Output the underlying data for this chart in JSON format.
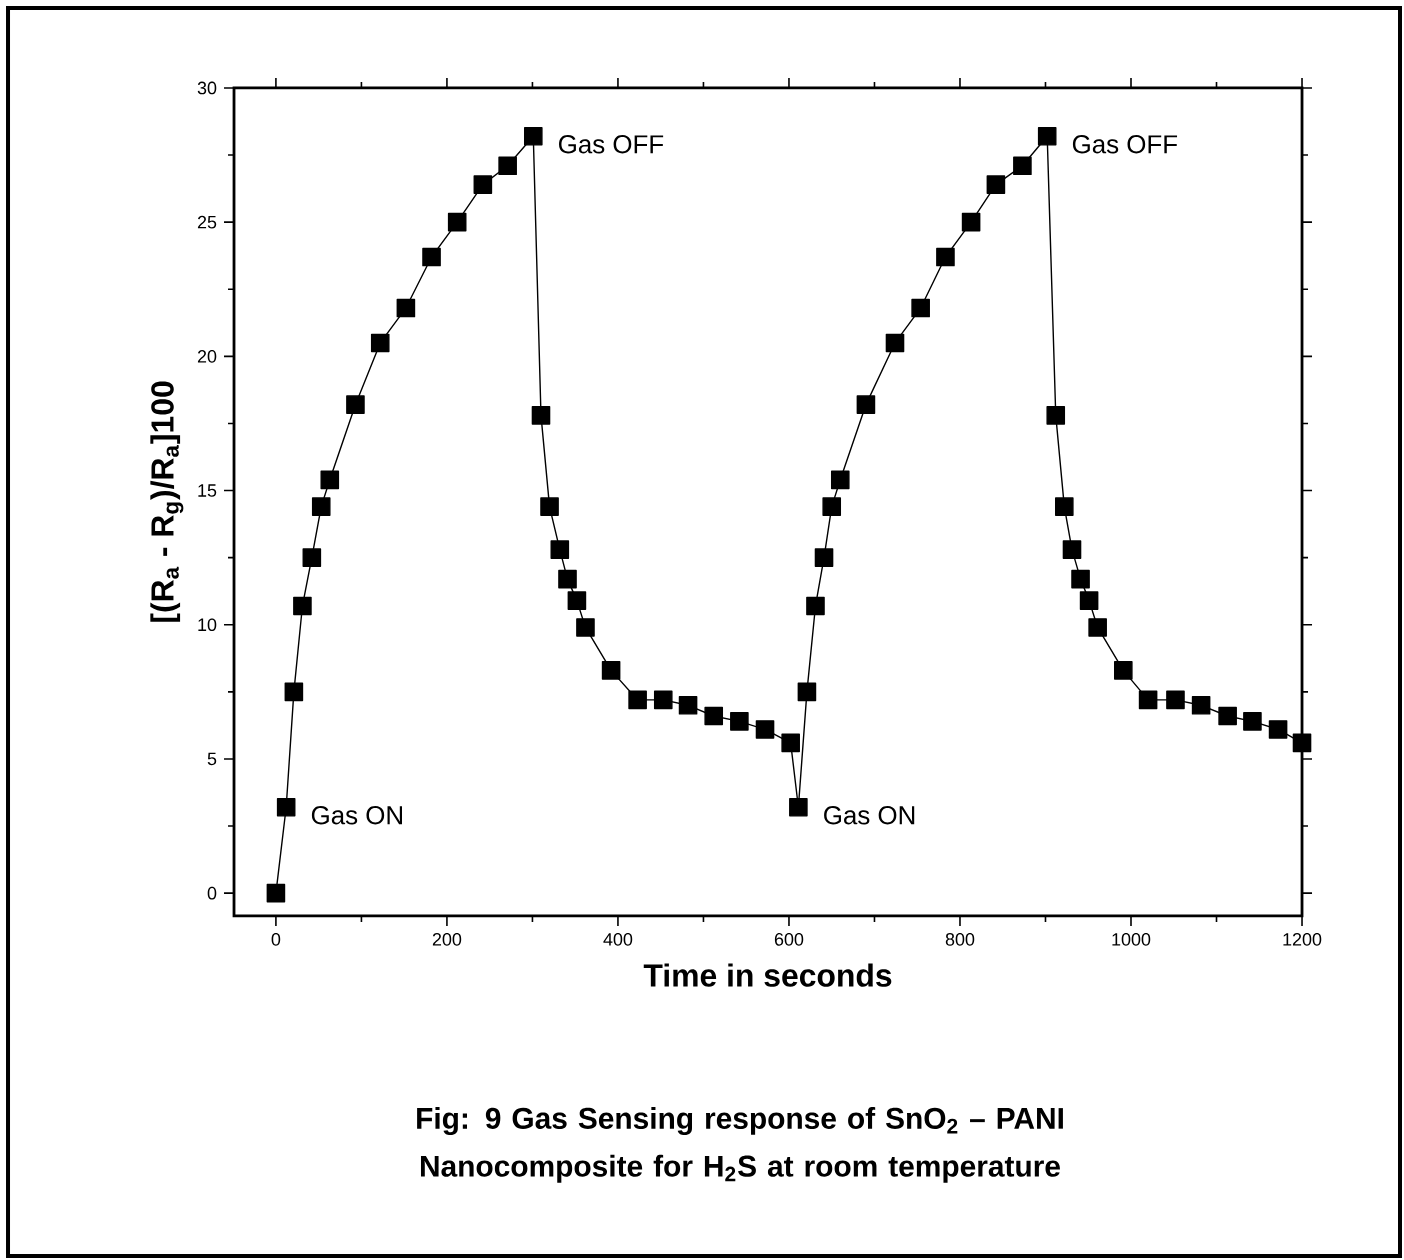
{
  "chart_data": {
    "type": "line",
    "xlabel": "Time in seconds",
    "ylabel": "[(R$_{a}$ - R$_{g}$)/R$_{a}$]100",
    "x": [
      0,
      12,
      21,
      31,
      42,
      53,
      63,
      93,
      122,
      152,
      182,
      212,
      242,
      271,
      301,
      310,
      320,
      332,
      341,
      352,
      362,
      392,
      423,
      453,
      482,
      512,
      542,
      572,
      602,
      611,
      621,
      631,
      641,
      650,
      660,
      690,
      724,
      754,
      783,
      813,
      842,
      873,
      902,
      912,
      922,
      931,
      941,
      951,
      961,
      991,
      1020,
      1052,
      1082,
      1113,
      1142,
      1172,
      1200
    ],
    "series": [
      {
        "color": "#000000",
        "values": [
          0,
          3.2,
          7.5,
          10.7,
          12.5,
          14.4,
          15.4,
          18.2,
          20.5,
          21.8,
          23.7,
          25.0,
          26.4,
          27.1,
          28.2,
          17.8,
          14.4,
          12.8,
          11.7,
          10.9,
          9.9,
          8.3,
          7.2,
          7.2,
          7.0,
          6.6,
          6.4,
          6.1,
          5.6,
          3.2,
          7.5,
          10.7,
          12.5,
          14.4,
          15.4,
          18.2,
          20.5,
          21.8,
          23.7,
          25.0,
          26.4,
          27.1,
          28.2,
          17.8,
          14.4,
          12.8,
          11.7,
          10.9,
          9.9,
          8.3,
          7.2,
          7.2,
          7.0,
          6.6,
          6.4,
          6.1,
          5.6
        ]
      }
    ],
    "marker": "square",
    "line_style": "solid",
    "xlim": [
      -49,
      1200
    ],
    "ylim": [
      -0.85,
      30
    ],
    "xticks": [
      0,
      200,
      400,
      600,
      800,
      1000,
      1200
    ],
    "yticks": [
      0,
      5,
      10,
      15,
      20,
      25,
      30
    ],
    "annotations": [
      {
        "text": "Gas ON",
        "x": 12,
        "y": 3.2
      },
      {
        "text": "Gas OFF",
        "x": 301,
        "y": 28.2
      },
      {
        "text": "Gas ON",
        "x": 611,
        "y": 3.2
      },
      {
        "text": "Gas OFF",
        "x": 902,
        "y": 28.2
      },
      "Fig: 9 Gas Sensing response of SnO$_{2}$ – PANI Nanocomposite for H$_{2}$S at room temperature"
    ]
  }
}
